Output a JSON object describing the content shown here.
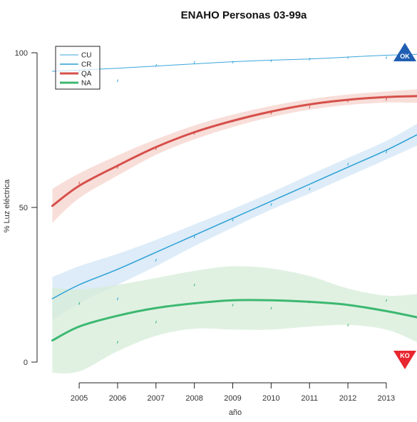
{
  "chart_data": {
    "type": "line",
    "title": "ENAHO Personas 03-99a",
    "xlabel": "año",
    "ylabel": "% Luz eléctrica",
    "xlim": [
      2004.2,
      2013.8
    ],
    "ylim": [
      0,
      100
    ],
    "x_ticks": [
      2005,
      2006,
      2007,
      2008,
      2009,
      2010,
      2011,
      2012,
      2013
    ],
    "x_tick_labels": [
      "2005",
      "2006",
      "2007",
      "2008",
      "2009",
      "2010",
      "2011",
      "2012",
      "2013"
    ],
    "y_ticks": [
      0,
      50,
      100
    ],
    "y_tick_labels": [
      "0",
      "50",
      "100"
    ],
    "grid": false,
    "legend_position": "top-left",
    "series": [
      {
        "name": "CU",
        "color": "#3aa6dc",
        "line_width": "thin",
        "x": [
          2004.3,
          2005,
          2006,
          2007,
          2008,
          2009,
          2010,
          2011,
          2012,
          2013,
          2013.8
        ],
        "values": [
          94.0,
          94.4,
          95.0,
          95.7,
          96.4,
          97.1,
          97.6,
          98.0,
          98.6,
          99.2,
          99.5
        ],
        "band_upper": null,
        "band_lower": null,
        "points_x": [
          2005,
          2006,
          2007,
          2008,
          2009,
          2010,
          2011,
          2012,
          2013
        ],
        "points_y": [
          94,
          91,
          96,
          97,
          97,
          97.5,
          98,
          98.5,
          98.5
        ]
      },
      {
        "name": "CR",
        "color": "#2a9fd6",
        "band_color": "#d2e6f5",
        "line_width": "medium",
        "x": [
          2004.3,
          2005,
          2006,
          2007,
          2008,
          2009,
          2010,
          2011,
          2012,
          2013,
          2013.8
        ],
        "values": [
          20.5,
          25,
          30,
          35.5,
          41,
          46.5,
          52,
          57.5,
          63,
          68.5,
          73.5
        ],
        "band_upper": [
          27.5,
          31,
          35,
          39.5,
          44.5,
          49.5,
          54.8,
          60.5,
          66,
          71.5,
          77
        ],
        "band_lower": [
          13.5,
          19,
          25,
          31,
          37.5,
          43.5,
          49.3,
          54.5,
          60,
          65.5,
          70
        ],
        "points_x": [
          2005,
          2006,
          2007,
          2008,
          2009,
          2010,
          2011,
          2012,
          2013
        ],
        "points_y": [
          19,
          20.5,
          33,
          40.5,
          46,
          51,
          56,
          64,
          68
        ]
      },
      {
        "name": "QA",
        "color": "#d6504b",
        "band_color": "#f6d3cc",
        "line_width": "thick",
        "x": [
          2004.3,
          2005,
          2006,
          2007,
          2008,
          2009,
          2010,
          2011,
          2012,
          2013,
          2013.8
        ],
        "values": [
          50.5,
          57,
          63.5,
          69.5,
          74.3,
          78,
          81,
          83.3,
          84.8,
          85.7,
          86
        ],
        "band_upper": [
          56,
          61,
          66.8,
          72,
          76.5,
          80,
          82.8,
          85,
          86.5,
          87.5,
          88.2
        ],
        "band_lower": [
          45,
          53,
          60.3,
          67,
          72,
          76,
          79.2,
          81.6,
          83.1,
          83.9,
          83.8
        ],
        "points_x": [
          2005,
          2006,
          2007,
          2008,
          2009,
          2010,
          2011,
          2012,
          2013
        ],
        "points_y": [
          58,
          63,
          69,
          74,
          78,
          80.5,
          82.5,
          84.5,
          85
        ]
      },
      {
        "name": "NA",
        "color": "#3cb870",
        "band_color": "#d6ecd8",
        "line_width": "thick",
        "x": [
          2004.3,
          2005,
          2006,
          2007,
          2008,
          2009,
          2010,
          2011,
          2012,
          2013,
          2013.8
        ],
        "values": [
          7,
          11.5,
          15,
          17.5,
          19,
          20,
          20,
          19.5,
          18.5,
          16.5,
          14.5
        ],
        "band_upper": [
          24,
          23.5,
          25,
          27.2,
          29.5,
          31,
          30.3,
          27.8,
          23.8,
          21.5,
          22
        ],
        "band_lower": [
          -3.5,
          -3,
          3.5,
          8.5,
          10.8,
          10.5,
          10.5,
          11.5,
          12,
          10.5,
          6.5
        ],
        "points_x": [
          2005,
          2006,
          2007,
          2008,
          2009,
          2010,
          2011,
          2012,
          2013
        ],
        "points_y": [
          19,
          6.5,
          13,
          25,
          18.5,
          17.5,
          19.5,
          12,
          20
        ]
      }
    ],
    "markers": [
      {
        "label": "OK",
        "shape": "triangle-up",
        "color": "#1f5fb3",
        "x": 2013.5,
        "y": 100
      },
      {
        "label": "KO",
        "shape": "triangle-down",
        "color": "#e8262f",
        "x": 2013.5,
        "y": 0
      }
    ]
  }
}
